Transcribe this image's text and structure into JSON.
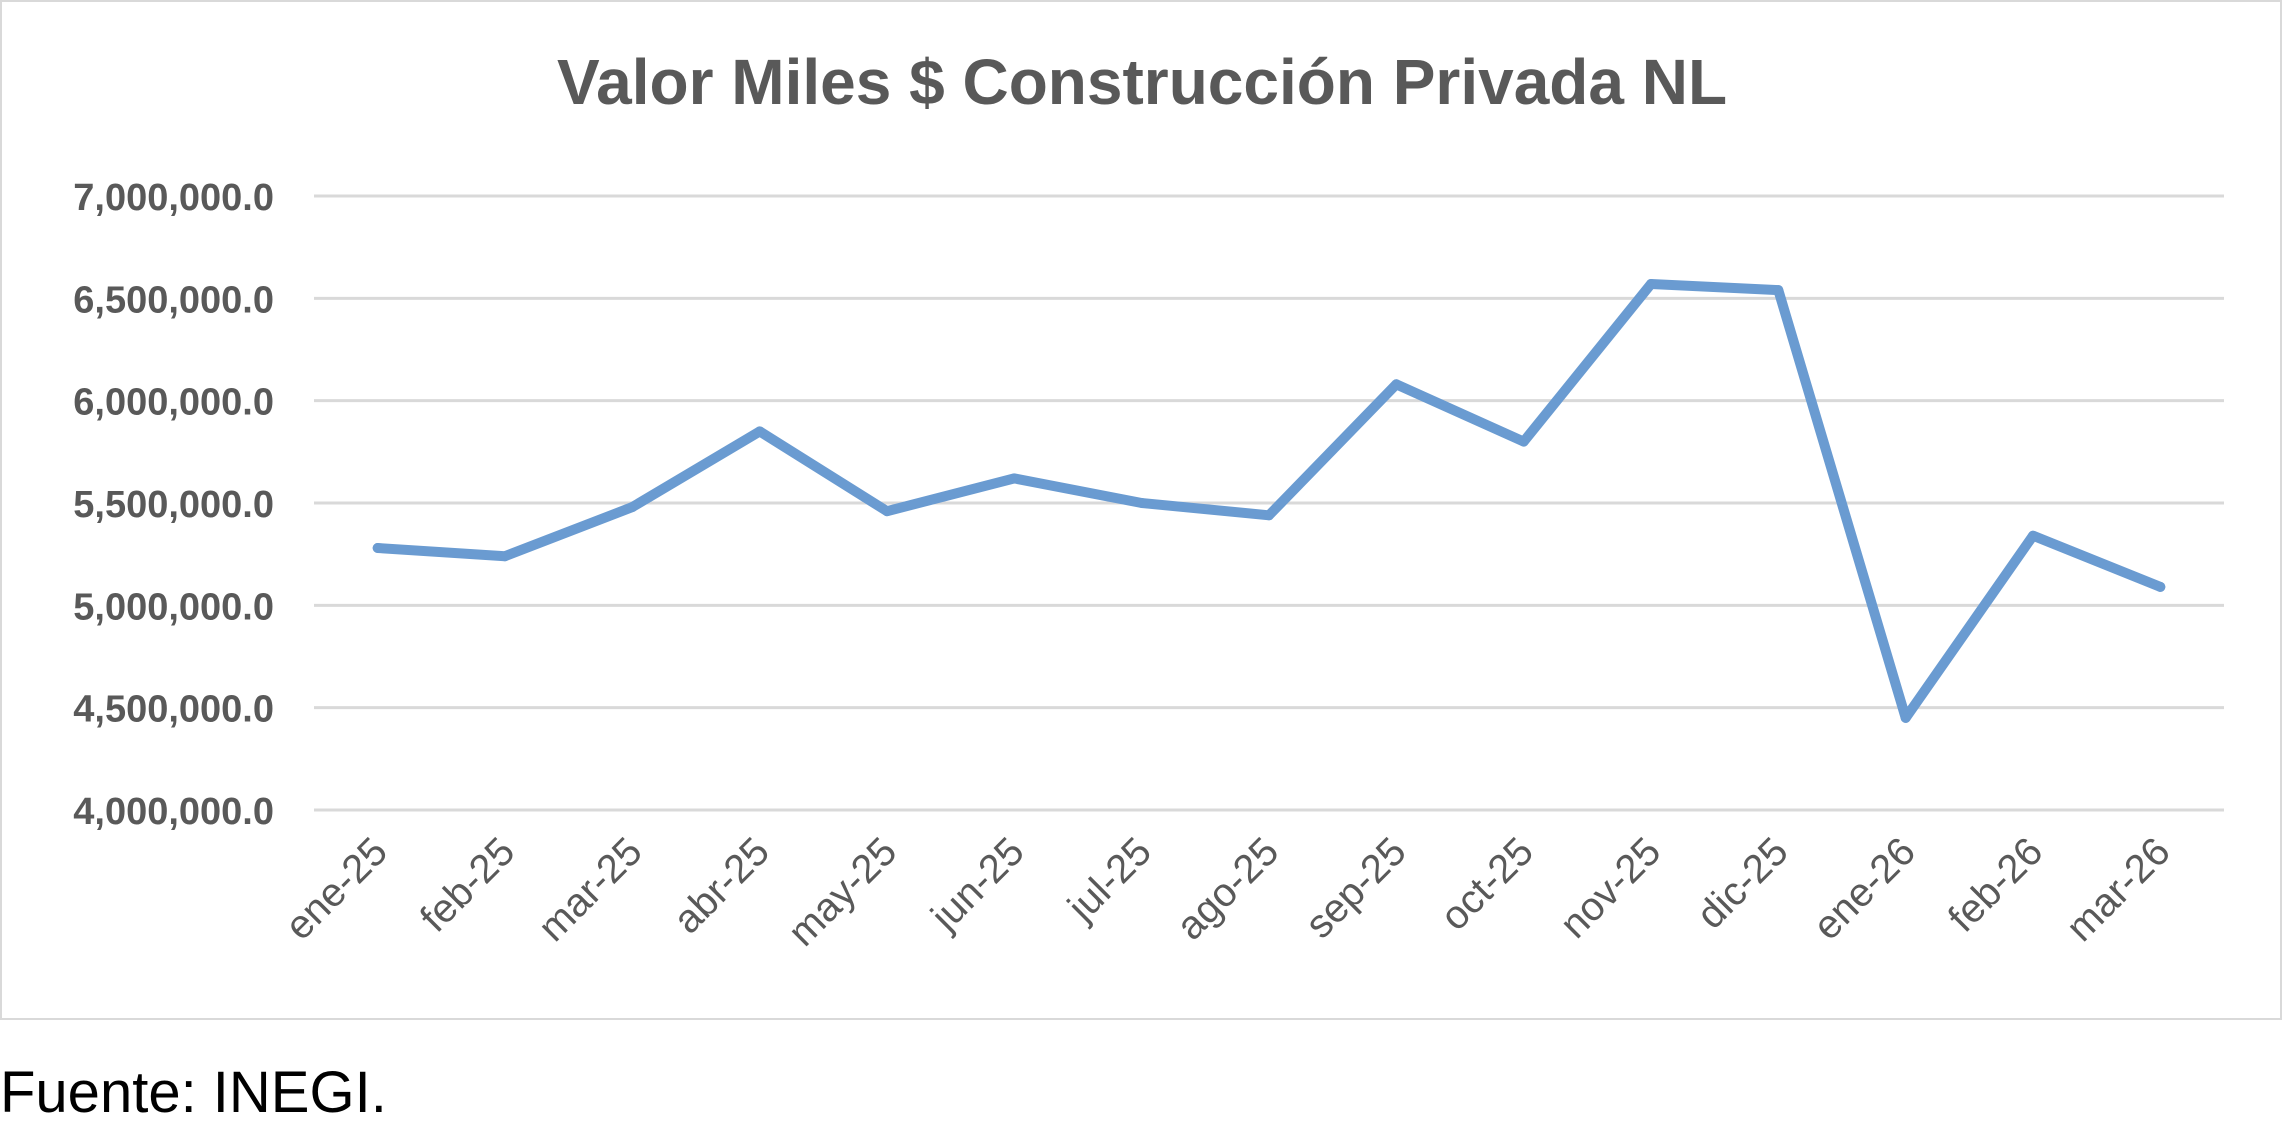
{
  "chart_data": {
    "type": "line",
    "title": "Valor Miles $ Construcción Privada NL",
    "xlabel": "",
    "ylabel": "",
    "categories": [
      "ene-25",
      "feb-25",
      "mar-25",
      "abr-25",
      "may-25",
      "jun-25",
      "jul-25",
      "ago-25",
      "sep-25",
      "oct-25",
      "nov-25",
      "dic-25",
      "ene-26",
      "feb-26",
      "mar-26"
    ],
    "series": [
      {
        "values": [
          5280000,
          5240000,
          5480000,
          5850000,
          5460000,
          5620000,
          5500000,
          5440000,
          6080000,
          5800000,
          6570000,
          6540000,
          4450000,
          5340000,
          5090000
        ]
      }
    ],
    "ylim": [
      4000000,
      7000000
    ],
    "yticks": [
      {
        "value": 4000000,
        "label": "4,000,000.0"
      },
      {
        "value": 4500000,
        "label": "4,500,000.0"
      },
      {
        "value": 5000000,
        "label": "5,000,000.0"
      },
      {
        "value": 5500000,
        "label": "5,500,000.0"
      },
      {
        "value": 6000000,
        "label": "6,000,000.0"
      },
      {
        "value": 6500000,
        "label": "6,500,000.0"
      },
      {
        "value": 7000000,
        "label": "7,000,000.0"
      }
    ],
    "grid": true,
    "legend": "none",
    "line_color": "#6a9bd1",
    "grid_color": "#d9d9d9",
    "text_color": "#595959"
  },
  "source_note": "Fuente: INEGI."
}
